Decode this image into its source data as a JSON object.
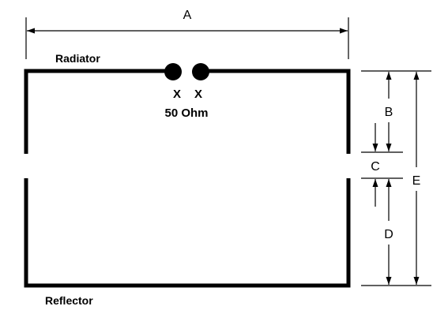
{
  "labels": {
    "radiator": "Radiator",
    "reflector": "Reflector",
    "feed_x_left": "X",
    "feed_x_right": "X",
    "impedance": "50 Ohm"
  },
  "dimensions": {
    "a": "A",
    "b": "B",
    "c": "C",
    "d": "D",
    "e": "E"
  },
  "colors": {
    "line": "#000000",
    "background": "#ffffff"
  }
}
